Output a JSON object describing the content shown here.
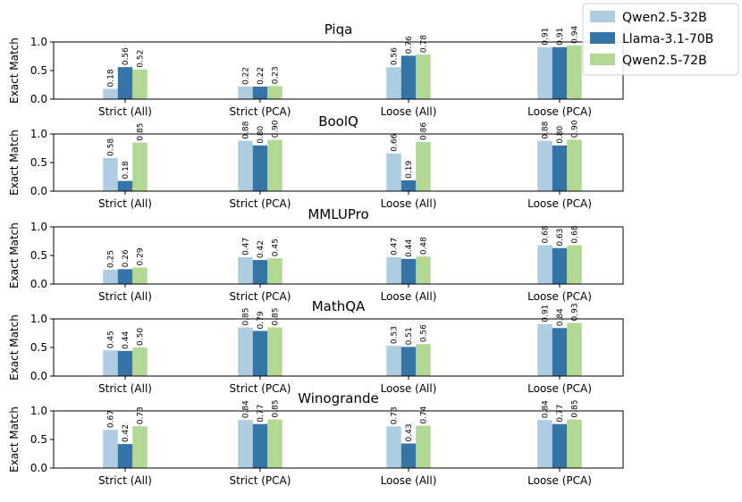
{
  "chart_data": [
    {
      "type": "bar",
      "title": "Piqa",
      "ylabel": "Exact Match",
      "ylim": [
        0,
        1.0
      ],
      "yticks": [
        "0.0",
        "0.5",
        "1.0"
      ],
      "categories": [
        "Strict (All)",
        "Strict (PCA)",
        "Loose (All)",
        "Loose (PCA)"
      ],
      "series": [
        {
          "name": "Qwen2.5-32B",
          "values": [
            0.18,
            0.22,
            0.56,
            0.91
          ],
          "labels": [
            "0.18",
            "0.22",
            "0.56",
            "0.91"
          ]
        },
        {
          "name": "Llama-3.1-70B",
          "values": [
            0.56,
            0.22,
            0.76,
            0.91
          ],
          "labels": [
            "0.56",
            "0.22",
            "0.76",
            "0.91"
          ]
        },
        {
          "name": "Qwen2.5-72B",
          "values": [
            0.52,
            0.23,
            0.78,
            0.94
          ],
          "labels": [
            "0.52",
            "0.23",
            "0.78",
            "0.94"
          ]
        }
      ]
    },
    {
      "type": "bar",
      "title": "BoolQ",
      "ylabel": "Exact Match",
      "ylim": [
        0,
        1.0
      ],
      "yticks": [
        "0.0",
        "0.5",
        "1.0"
      ],
      "categories": [
        "Strict (All)",
        "Strict (PCA)",
        "Loose (All)",
        "Loose (PCA)"
      ],
      "series": [
        {
          "name": "Qwen2.5-32B",
          "values": [
            0.58,
            0.88,
            0.66,
            0.88
          ],
          "labels": [
            "0.58",
            "0.88",
            "0.66",
            "0.88"
          ]
        },
        {
          "name": "Llama-3.1-70B",
          "values": [
            0.18,
            0.8,
            0.19,
            0.8
          ],
          "labels": [
            "0.18",
            "0.80",
            "0.19",
            "0.80"
          ]
        },
        {
          "name": "Qwen2.5-72B",
          "values": [
            0.85,
            0.9,
            0.86,
            0.9
          ],
          "labels": [
            "0.85",
            "0.90",
            "0.86",
            "0.90"
          ]
        }
      ]
    },
    {
      "type": "bar",
      "title": "MMLUPro",
      "ylabel": "Exact Match",
      "ylim": [
        0,
        1.0
      ],
      "yticks": [
        "0.0",
        "0.5",
        "1.0"
      ],
      "categories": [
        "Strict (All)",
        "Strict (PCA)",
        "Loose (All)",
        "Loose (PCA)"
      ],
      "series": [
        {
          "name": "Qwen2.5-32B",
          "values": [
            0.25,
            0.47,
            0.47,
            0.68
          ],
          "labels": [
            "0.25",
            "0.47",
            "0.47",
            "0.68"
          ]
        },
        {
          "name": "Llama-3.1-70B",
          "values": [
            0.26,
            0.42,
            0.44,
            0.63
          ],
          "labels": [
            "0.26",
            "0.42",
            "0.44",
            "0.63"
          ]
        },
        {
          "name": "Qwen2.5-72B",
          "values": [
            0.29,
            0.45,
            0.48,
            0.68
          ],
          "labels": [
            "0.29",
            "0.45",
            "0.48",
            "0.68"
          ]
        }
      ]
    },
    {
      "type": "bar",
      "title": "MathQA",
      "ylabel": "Exact Match",
      "ylim": [
        0,
        1.0
      ],
      "yticks": [
        "0.0",
        "0.5",
        "1.0"
      ],
      "categories": [
        "Strict (All)",
        "Strict (PCA)",
        "Loose (All)",
        "Loose (PCA)"
      ],
      "series": [
        {
          "name": "Qwen2.5-32B",
          "values": [
            0.45,
            0.85,
            0.53,
            0.91
          ],
          "labels": [
            "0.45",
            "0.85",
            "0.53",
            "0.91"
          ]
        },
        {
          "name": "Llama-3.1-70B",
          "values": [
            0.44,
            0.79,
            0.51,
            0.84
          ],
          "labels": [
            "0.44",
            "0.79",
            "0.51",
            "0.84"
          ]
        },
        {
          "name": "Qwen2.5-72B",
          "values": [
            0.5,
            0.85,
            0.56,
            0.93
          ],
          "labels": [
            "0.50",
            "0.85",
            "0.56",
            "0.93"
          ]
        }
      ]
    },
    {
      "type": "bar",
      "title": "Winogrande",
      "ylabel": "Exact Match",
      "ylim": [
        0,
        1.0
      ],
      "yticks": [
        "0.0",
        "0.5",
        "1.0"
      ],
      "categories": [
        "Strict (All)",
        "Strict (PCA)",
        "Loose (All)",
        "Loose (PCA)"
      ],
      "series": [
        {
          "name": "Qwen2.5-32B",
          "values": [
            0.67,
            0.84,
            0.73,
            0.84
          ],
          "labels": [
            "0.67",
            "0.84",
            "0.73",
            "0.84"
          ]
        },
        {
          "name": "Llama-3.1-70B",
          "values": [
            0.42,
            0.77,
            0.43,
            0.77
          ],
          "labels": [
            "0.42",
            "0.77",
            "0.43",
            "0.77"
          ]
        },
        {
          "name": "Qwen2.5-72B",
          "values": [
            0.73,
            0.85,
            0.74,
            0.85
          ],
          "labels": [
            "0.73",
            "0.85",
            "0.74",
            "0.85"
          ]
        }
      ]
    }
  ],
  "legend": {
    "placement": "top-right",
    "entries": [
      {
        "name": "Qwen2.5-32B",
        "color": "#aecde1"
      },
      {
        "name": "Llama-3.1-70B",
        "color": "#3474a7"
      },
      {
        "name": "Qwen2.5-72B",
        "color": "#b3d893"
      }
    ]
  },
  "colors": {
    "Qwen2.5-32B": "#aecde1",
    "Llama-3.1-70B": "#3474a7",
    "Qwen2.5-72B": "#b3d893"
  }
}
